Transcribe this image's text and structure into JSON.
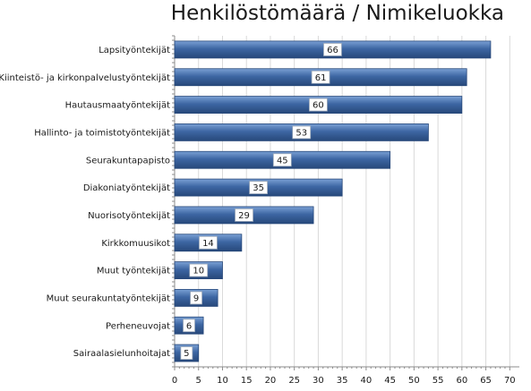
{
  "chart_data": {
    "type": "bar",
    "orientation": "horizontal",
    "title": "Henkilöstömäärä / Nimikeluokka",
    "categories": [
      "Lapsityöntekijät",
      "Kiinteistö- ja kirkonpalvelustyöntekijät",
      "Hautausmaatyöntekijät",
      "Hallinto- ja toimistotyöntekijät",
      "Seurakuntapapisto",
      "Diakoniatyöntekijät",
      "Nuorisotyöntekijät",
      "Kirkkomuusikot",
      "Muut työntekijät",
      "Muut seurakuntatyöntekijät",
      "Perheneuvojat",
      "Sairaalasielunhoitajat"
    ],
    "values": [
      66,
      61,
      60,
      53,
      45,
      35,
      29,
      14,
      10,
      9,
      6,
      5
    ],
    "xlim": [
      0,
      72
    ],
    "xticks": [
      0,
      5,
      10,
      15,
      20,
      25,
      30,
      35,
      40,
      45,
      50,
      55,
      60,
      65,
      70
    ],
    "grid": true,
    "data_labels": true,
    "colors": {
      "bar": "#3d66a3",
      "bar_dark": "#27487a",
      "bar_light": "#7aa0d4",
      "grid": "#d9d9d9"
    }
  }
}
